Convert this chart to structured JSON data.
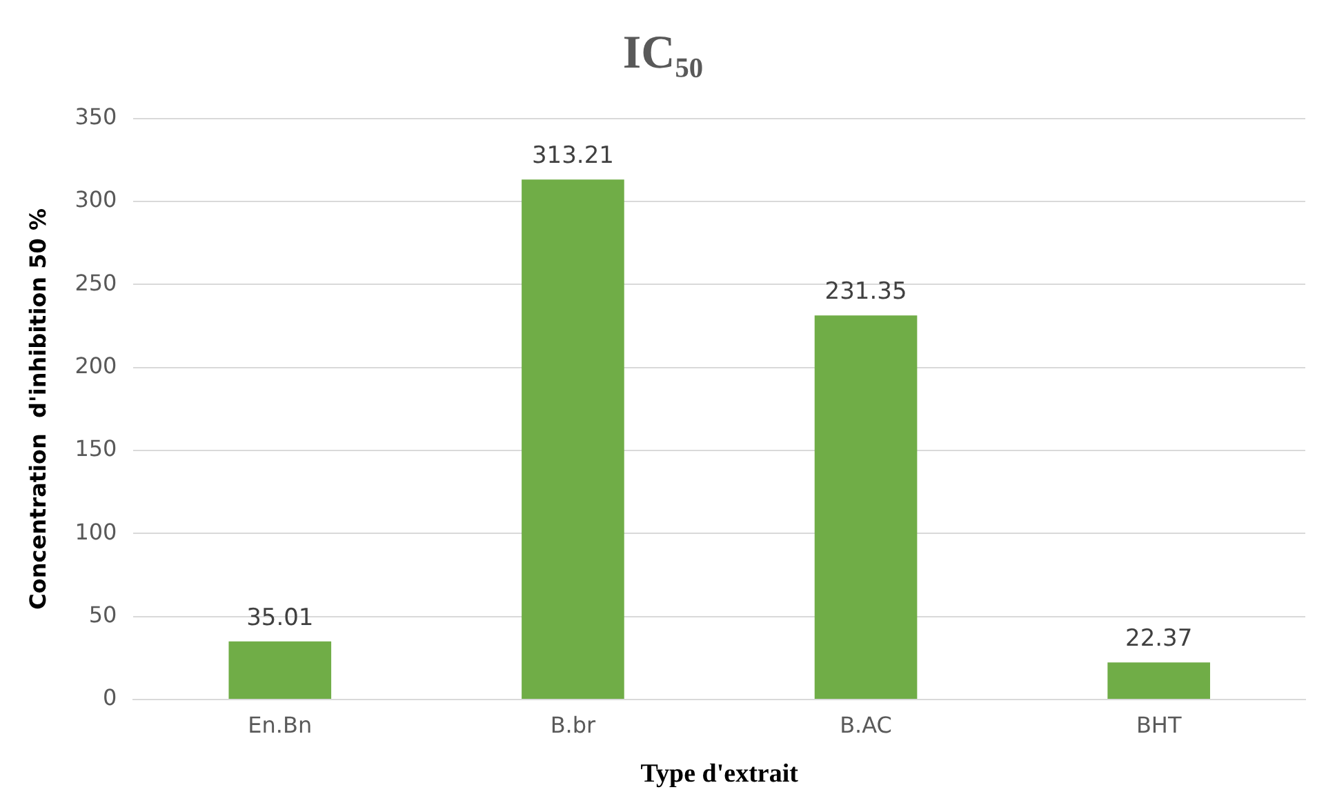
{
  "chart_data": {
    "type": "bar",
    "title": "IC₅₀",
    "xlabel": "Type d'extrait",
    "ylabel": "Concentration  d'inhibition 50 %",
    "categories": [
      "En.Bn",
      "B.br",
      "B.AC",
      "BHT"
    ],
    "values": [
      35.01,
      313.21,
      231.35,
      22.37
    ],
    "color": "#70ad47",
    "ylim": [
      0,
      350
    ],
    "yticks": [
      0,
      50,
      100,
      150,
      200,
      250,
      300,
      350
    ],
    "grid": "y",
    "data_labels": true,
    "legend": false
  }
}
